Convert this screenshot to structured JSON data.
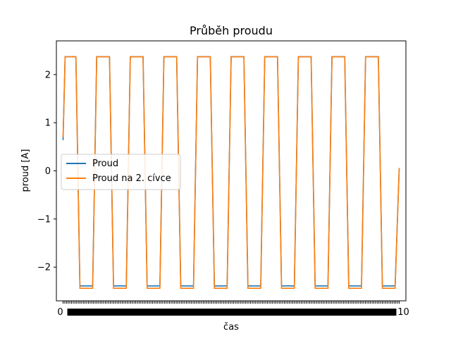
{
  "chart_data": {
    "type": "line",
    "title": "Průběh proudu",
    "xlabel": "čas",
    "ylabel": "proud [A]",
    "xlim": [
      -0.2,
      10.2
    ],
    "ylim": [
      -2.7,
      2.7
    ],
    "yticks": [
      -2,
      -1,
      0,
      1,
      2
    ],
    "ytick_labels": [
      "−2",
      "−1",
      "0",
      "1",
      "2"
    ],
    "xtick_labels_note": "dense overlapping tick labels; first visible '0', last visible '10'",
    "xtick_first_label": "0",
    "xtick_last_label": "10",
    "xtick_count": 200,
    "legend_position": "center-left",
    "series": [
      {
        "name": "Proud",
        "color": "#1f77b4",
        "period": 1.0,
        "high": 2.37,
        "low": -2.39,
        "start_value": 0.64,
        "end_value": 0.05,
        "x_range": [
          0,
          10
        ]
      },
      {
        "name": "Proud na 2. cívce",
        "color": "#ff7f0e",
        "period": 1.0,
        "high": 2.37,
        "low": -2.44,
        "start_value": 0.7,
        "end_value": 0.06,
        "x_range": [
          0,
          10
        ]
      }
    ]
  }
}
